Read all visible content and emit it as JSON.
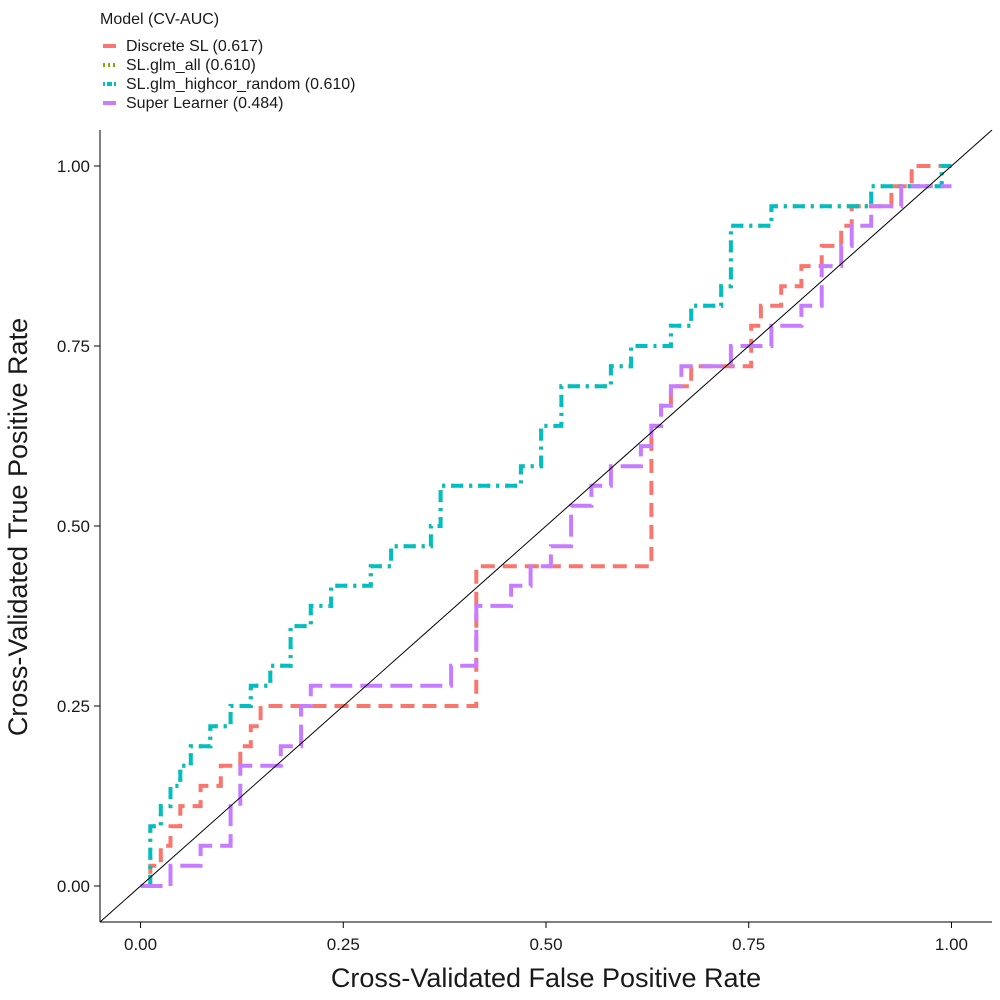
{
  "chart_data": {
    "type": "line",
    "title": "",
    "xlabel": "Cross-Validated False Positive Rate",
    "ylabel": "Cross-Validated True Positive Rate",
    "xlim": [
      -0.05,
      1.05
    ],
    "ylim": [
      -0.05,
      1.05
    ],
    "x_ticks": [
      "0.00",
      "0.25",
      "0.50",
      "0.75",
      "1.00"
    ],
    "y_ticks": [
      "0.00",
      "0.25",
      "0.50",
      "0.75",
      "1.00"
    ],
    "grid": false,
    "legend": {
      "title": "Model (CV-AUC)",
      "position": "top-left",
      "entries": [
        "Discrete SL (0.617)",
        "SL.glm_all (0.610)",
        "SL.glm_highcor_random (0.610)",
        "Super Learner (0.484)"
      ]
    },
    "reference_line": {
      "x": [
        0,
        1
      ],
      "y": [
        0,
        1
      ],
      "color": "#000000"
    },
    "series": [
      {
        "color": "#F8766D",
        "dash": "dashed",
        "x": [
          0.0,
          0.012,
          0.012,
          0.025,
          0.025,
          0.037,
          0.037,
          0.049,
          0.049,
          0.074,
          0.074,
          0.099,
          0.099,
          0.123,
          0.123,
          0.136,
          0.136,
          0.148,
          0.148,
          0.173,
          0.173,
          0.185,
          0.185,
          0.21,
          0.21,
          0.247,
          0.247,
          0.37,
          0.37,
          0.414,
          0.414,
          0.42,
          0.42,
          0.63,
          0.63,
          0.642,
          0.642,
          0.654,
          0.654,
          0.679,
          0.679,
          0.753,
          0.753,
          0.765,
          0.765,
          0.79,
          0.79,
          0.815,
          0.815,
          0.84,
          0.84,
          0.864,
          0.864,
          0.877,
          0.877,
          0.914,
          0.914,
          0.926,
          0.926,
          0.951,
          0.951,
          0.975,
          0.975,
          1.0
        ],
        "y": [
          0.0,
          0.0,
          0.028,
          0.028,
          0.056,
          0.056,
          0.083,
          0.083,
          0.111,
          0.111,
          0.139,
          0.139,
          0.167,
          0.167,
          0.194,
          0.194,
          0.222,
          0.222,
          0.25,
          0.25,
          0.25,
          0.25,
          0.25,
          0.25,
          0.25,
          0.25,
          0.25,
          0.25,
          0.25,
          0.25,
          0.444,
          0.444,
          0.444,
          0.444,
          0.639,
          0.639,
          0.667,
          0.667,
          0.694,
          0.694,
          0.722,
          0.722,
          0.778,
          0.778,
          0.806,
          0.806,
          0.833,
          0.833,
          0.861,
          0.861,
          0.889,
          0.889,
          0.917,
          0.917,
          0.944,
          0.944,
          0.944,
          0.944,
          0.972,
          0.972,
          1.0,
          1.0,
          1.0,
          1.0
        ]
      },
      {
        "color": "#7CAE00",
        "dash": "dotted",
        "x": [
          0.0,
          0.012,
          0.012,
          0.025,
          0.025,
          0.037,
          0.037,
          0.049,
          0.049,
          0.062,
          0.062,
          0.086,
          0.086,
          0.111,
          0.111,
          0.136,
          0.136,
          0.16,
          0.16,
          0.185,
          0.185,
          0.21,
          0.21,
          0.235,
          0.235,
          0.284,
          0.284,
          0.309,
          0.309,
          0.358,
          0.358,
          0.37,
          0.37,
          0.469,
          0.469,
          0.494,
          0.494,
          0.519,
          0.519,
          0.58,
          0.58,
          0.605,
          0.605,
          0.654,
          0.654,
          0.679,
          0.679,
          0.716,
          0.716,
          0.728,
          0.728,
          0.778,
          0.778,
          0.901,
          0.901,
          0.938,
          0.938,
          0.988,
          0.988,
          1.0
        ],
        "y": [
          0.0,
          0.0,
          0.083,
          0.083,
          0.111,
          0.111,
          0.139,
          0.139,
          0.167,
          0.167,
          0.194,
          0.194,
          0.222,
          0.222,
          0.25,
          0.25,
          0.278,
          0.278,
          0.306,
          0.306,
          0.361,
          0.361,
          0.389,
          0.389,
          0.417,
          0.417,
          0.444,
          0.444,
          0.472,
          0.472,
          0.5,
          0.5,
          0.556,
          0.556,
          0.583,
          0.583,
          0.639,
          0.639,
          0.694,
          0.694,
          0.722,
          0.722,
          0.75,
          0.75,
          0.778,
          0.778,
          0.806,
          0.806,
          0.833,
          0.833,
          0.917,
          0.917,
          0.944,
          0.944,
          0.972,
          0.972,
          0.972,
          0.972,
          1.0,
          1.0
        ]
      },
      {
        "color": "#00BFC4",
        "dash": "dotdash",
        "x": [
          0.0,
          0.012,
          0.012,
          0.025,
          0.025,
          0.037,
          0.037,
          0.049,
          0.049,
          0.062,
          0.062,
          0.086,
          0.086,
          0.111,
          0.111,
          0.136,
          0.136,
          0.16,
          0.16,
          0.185,
          0.185,
          0.21,
          0.21,
          0.235,
          0.235,
          0.284,
          0.284,
          0.309,
          0.309,
          0.358,
          0.358,
          0.37,
          0.37,
          0.469,
          0.469,
          0.494,
          0.494,
          0.519,
          0.519,
          0.58,
          0.58,
          0.605,
          0.605,
          0.654,
          0.654,
          0.679,
          0.679,
          0.716,
          0.716,
          0.728,
          0.728,
          0.778,
          0.778,
          0.901,
          0.901,
          0.938,
          0.938,
          0.988,
          0.988,
          1.0
        ],
        "y": [
          0.0,
          0.0,
          0.083,
          0.083,
          0.111,
          0.111,
          0.139,
          0.139,
          0.167,
          0.167,
          0.194,
          0.194,
          0.222,
          0.222,
          0.25,
          0.25,
          0.278,
          0.278,
          0.306,
          0.306,
          0.361,
          0.361,
          0.389,
          0.389,
          0.417,
          0.417,
          0.444,
          0.444,
          0.472,
          0.472,
          0.5,
          0.5,
          0.556,
          0.556,
          0.583,
          0.583,
          0.639,
          0.639,
          0.694,
          0.694,
          0.722,
          0.722,
          0.75,
          0.75,
          0.778,
          0.778,
          0.806,
          0.806,
          0.833,
          0.833,
          0.917,
          0.917,
          0.944,
          0.944,
          0.972,
          0.972,
          0.972,
          0.972,
          1.0,
          1.0
        ]
      },
      {
        "color": "#C77CFF",
        "dash": "longdash",
        "x": [
          0.0,
          0.037,
          0.037,
          0.074,
          0.074,
          0.111,
          0.111,
          0.123,
          0.123,
          0.173,
          0.173,
          0.198,
          0.198,
          0.21,
          0.21,
          0.383,
          0.383,
          0.414,
          0.414,
          0.42,
          0.42,
          0.457,
          0.457,
          0.481,
          0.481,
          0.506,
          0.506,
          0.531,
          0.531,
          0.556,
          0.556,
          0.58,
          0.58,
          0.617,
          0.617,
          0.63,
          0.63,
          0.642,
          0.642,
          0.654,
          0.654,
          0.667,
          0.667,
          0.728,
          0.728,
          0.778,
          0.778,
          0.815,
          0.815,
          0.84,
          0.84,
          0.864,
          0.864,
          0.877,
          0.877,
          0.901,
          0.901,
          0.938,
          0.938,
          1.0
        ],
        "y": [
          0.0,
          0.0,
          0.028,
          0.028,
          0.056,
          0.056,
          0.111,
          0.111,
          0.167,
          0.167,
          0.194,
          0.194,
          0.25,
          0.25,
          0.278,
          0.278,
          0.306,
          0.306,
          0.389,
          0.389,
          0.389,
          0.389,
          0.417,
          0.417,
          0.444,
          0.444,
          0.472,
          0.472,
          0.528,
          0.528,
          0.556,
          0.556,
          0.583,
          0.583,
          0.611,
          0.611,
          0.639,
          0.639,
          0.667,
          0.667,
          0.694,
          0.694,
          0.722,
          0.722,
          0.75,
          0.75,
          0.778,
          0.778,
          0.806,
          0.806,
          0.861,
          0.861,
          0.889,
          0.889,
          0.917,
          0.917,
          0.944,
          0.944,
          0.972,
          0.972
        ]
      }
    ]
  }
}
